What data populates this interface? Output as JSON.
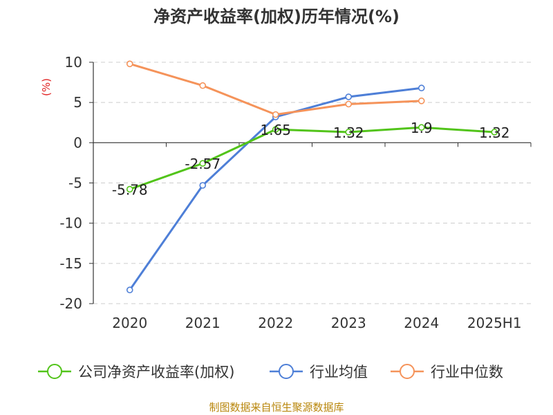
{
  "chart_data": {
    "type": "line",
    "title": "净资产收益率(加权)历年情况(%)",
    "ylabel": "(%)",
    "categories": [
      "2020",
      "2021",
      "2022",
      "2023",
      "2024",
      "2025H1"
    ],
    "ylim": [
      -20,
      10
    ],
    "yticks": [
      10,
      5,
      0,
      -5,
      -10,
      -15,
      -20
    ],
    "grid": true,
    "legend_position": "bottom",
    "series": [
      {
        "name": "公司净资产收益率(加权)",
        "color": "#52c41a",
        "values": [
          -5.78,
          -2.57,
          1.65,
          1.32,
          1.9,
          1.32
        ],
        "labels": [
          "-5.78",
          "-2.57",
          "1.65",
          "1.32",
          "1.9",
          "1.32"
        ]
      },
      {
        "name": "行业均值",
        "color": "#4e7fd7",
        "values": [
          -18.3,
          -5.3,
          3.2,
          5.7,
          6.8,
          null
        ]
      },
      {
        "name": "行业中位数",
        "color": "#f5935a",
        "values": [
          9.8,
          7.1,
          3.5,
          4.8,
          5.2,
          null
        ]
      }
    ]
  },
  "source": "制图数据来自恒生聚源数据库"
}
